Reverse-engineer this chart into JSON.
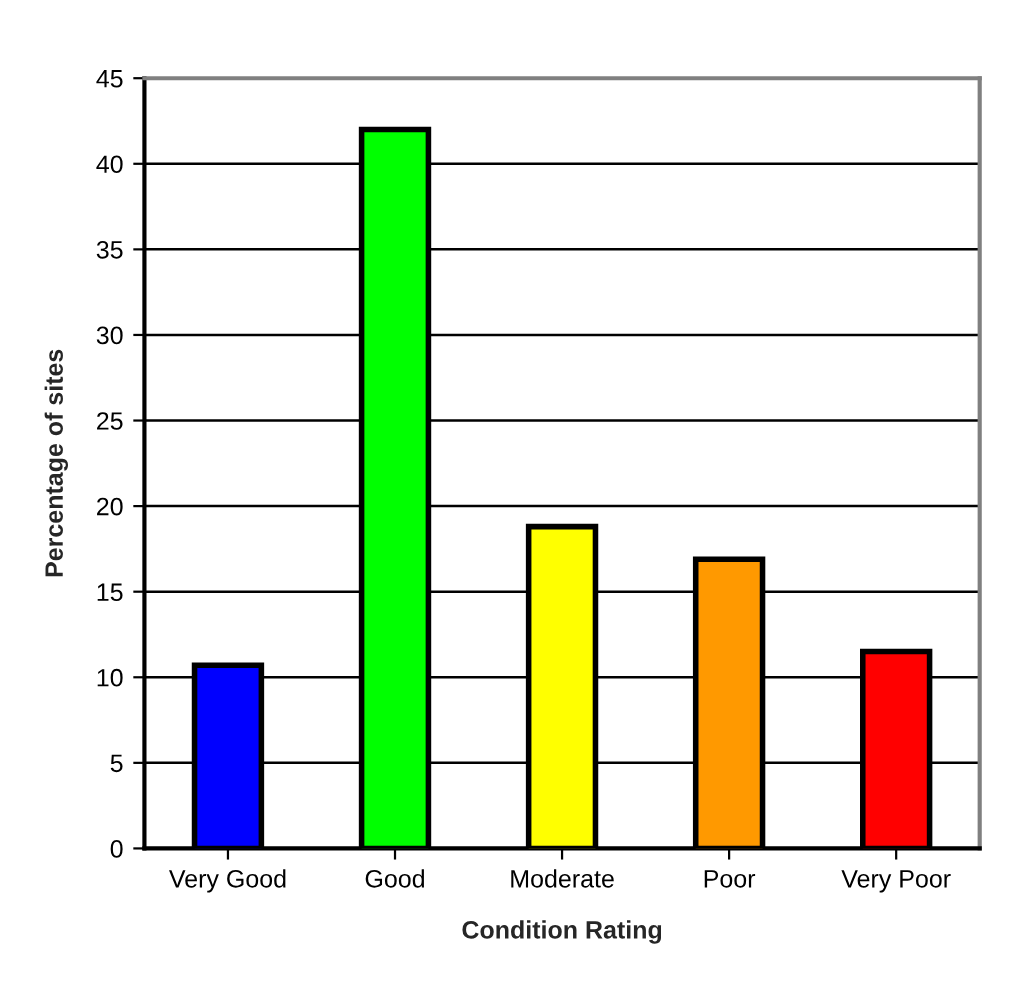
{
  "chart_data": {
    "type": "bar",
    "xlabel": "Condition Rating",
    "ylabel": "Percentage of sites",
    "categories": [
      "Very Good",
      "Good",
      "Moderate",
      "Poor",
      "Very Poor"
    ],
    "values": [
      10.7,
      42,
      18.8,
      16.9,
      11.5
    ],
    "colors": [
      "#0000ff",
      "#00ff00",
      "#ffff00",
      "#ff9900",
      "#ff0000"
    ],
    "ylim": [
      0,
      45
    ],
    "yticks": [
      0,
      5,
      10,
      15,
      20,
      25,
      30,
      35,
      40,
      45
    ],
    "grid": "y"
  }
}
